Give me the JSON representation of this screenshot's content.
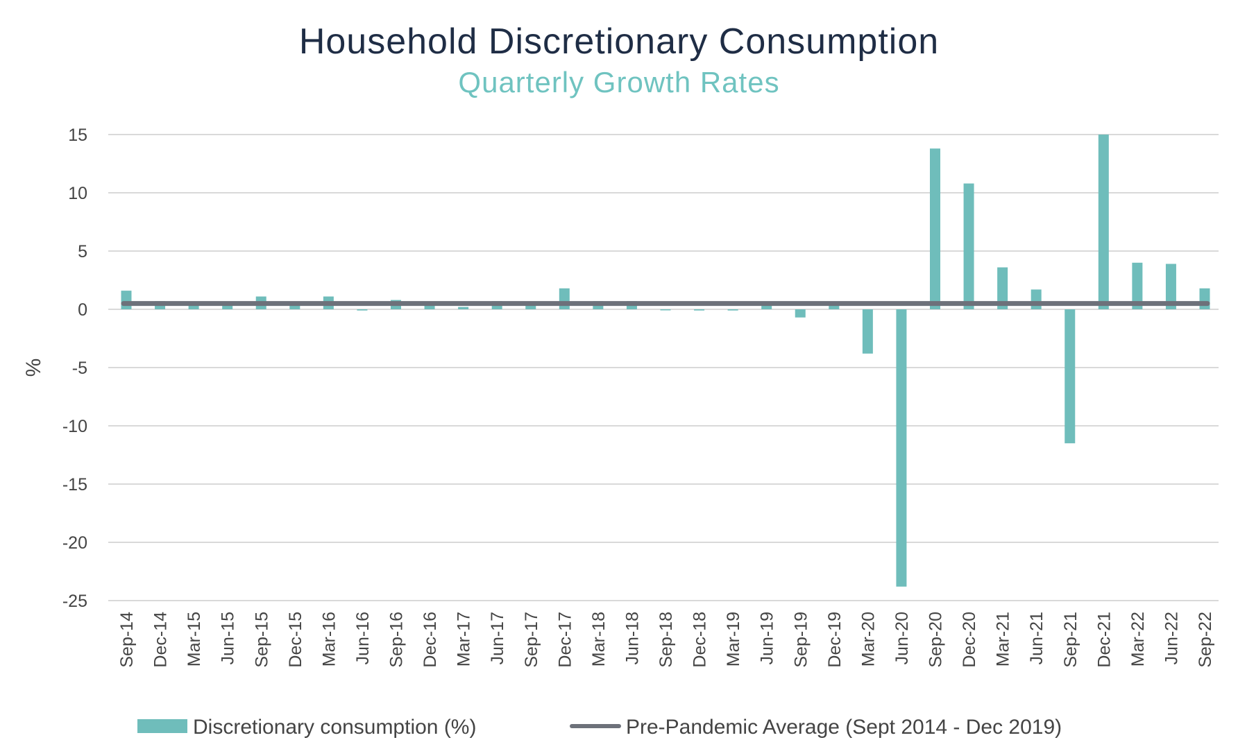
{
  "chart_data": {
    "type": "bar",
    "title": "Household Discretionary Consumption",
    "subtitle": "Quarterly Growth Rates",
    "ylabel": "%",
    "xlabel": "",
    "ylim": [
      -25,
      15
    ],
    "yticks": [
      15,
      10,
      5,
      0,
      -5,
      -10,
      -15,
      -20,
      -25
    ],
    "grid": true,
    "legend_position": "bottom",
    "categories": [
      "Sep-14",
      "Dec-14",
      "Mar-15",
      "Jun-15",
      "Sep-15",
      "Dec-15",
      "Mar-16",
      "Jun-16",
      "Sep-16",
      "Dec-16",
      "Mar-17",
      "Jun-17",
      "Sep-17",
      "Dec-17",
      "Mar-18",
      "Jun-18",
      "Sep-18",
      "Dec-18",
      "Mar-19",
      "Jun-19",
      "Sep-19",
      "Dec-19",
      "Mar-20",
      "Jun-20",
      "Sep-20",
      "Dec-20",
      "Mar-21",
      "Jun-21",
      "Sep-21",
      "Dec-21",
      "Mar-22",
      "Jun-22",
      "Sep-22"
    ],
    "series": [
      {
        "name": "Discretionary consumption (%)",
        "type": "bar",
        "color": "#6fbdbb",
        "values": [
          1.6,
          0.7,
          0.5,
          0.6,
          1.1,
          0.5,
          1.1,
          -0.1,
          0.8,
          0.6,
          0.2,
          0.7,
          0.6,
          1.8,
          0.7,
          0.7,
          0.0,
          -0.1,
          -0.1,
          0.5,
          -0.7,
          0.6,
          -3.8,
          -23.8,
          13.8,
          10.8,
          3.6,
          1.7,
          -11.5,
          15.0,
          4.0,
          3.9,
          1.8
        ]
      },
      {
        "name": "Pre-Pandemic Average (Sept 2014 - Dec 2019)",
        "type": "line",
        "color": "#6d717a",
        "value": 0.5
      }
    ]
  }
}
